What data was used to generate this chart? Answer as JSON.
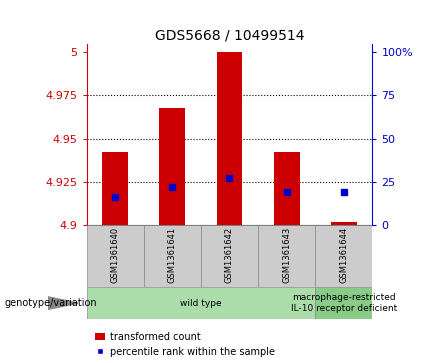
{
  "title": "GDS5668 / 10499514",
  "samples": [
    "GSM1361640",
    "GSM1361641",
    "GSM1361642",
    "GSM1361643",
    "GSM1361644"
  ],
  "bar_bottoms": [
    4.9,
    4.9,
    4.9,
    4.9,
    4.9
  ],
  "bar_tops": [
    4.942,
    4.968,
    5.0,
    4.942,
    4.902
  ],
  "percentile_values": [
    4.916,
    4.922,
    4.927,
    4.919,
    4.919
  ],
  "ylim_left": [
    4.9,
    5.005
  ],
  "ylim_right": [
    0,
    105
  ],
  "yticks_left": [
    4.9,
    4.925,
    4.95,
    4.975,
    5.0
  ],
  "ytick_labels_left": [
    "4.9",
    "4.925",
    "4.95",
    "4.975",
    "5"
  ],
  "yticks_right": [
    0,
    25,
    50,
    75,
    100
  ],
  "ytick_labels_right": [
    "0",
    "25",
    "50",
    "75",
    "100%"
  ],
  "bar_color": "#cc0000",
  "percentile_color": "#0000cc",
  "grid_color": "#000000",
  "bg_plot": "#ffffff",
  "groups": [
    {
      "label": "wild type",
      "indices": [
        0,
        1,
        2,
        3
      ],
      "color": "#aaddaa"
    },
    {
      "label": "macrophage-restricted\nIL-10 receptor deficient",
      "indices": [
        4
      ],
      "color": "#88cc88"
    }
  ],
  "legend_label_bar": "transformed count",
  "legend_label_pct": "percentile rank within the sample",
  "genotype_label": "genotype/variation",
  "title_fontsize": 10,
  "tick_fontsize": 8,
  "label_fontsize": 7.5
}
